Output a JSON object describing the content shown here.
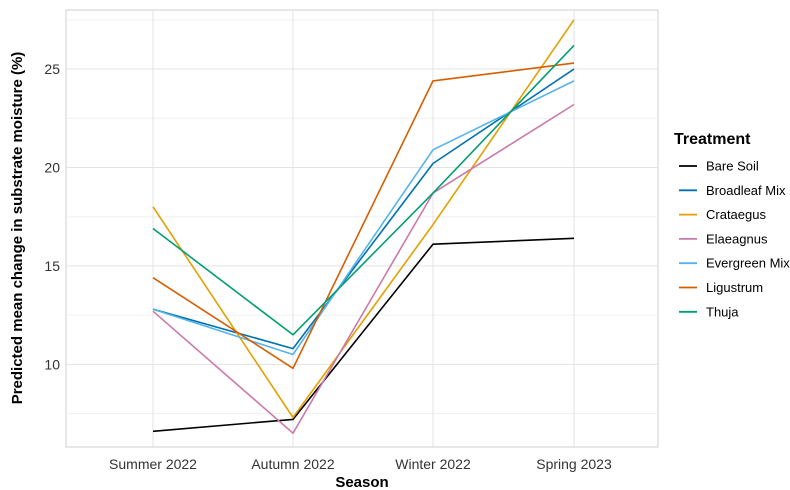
{
  "chart_data": {
    "type": "line",
    "title": "",
    "xlabel": "Season",
    "ylabel": "Predicted mean change in substrate moisture (%)",
    "categories": [
      "Summer 2022",
      "Autumn 2022",
      "Winter 2022",
      "Spring 2023"
    ],
    "ylim": [
      5.8,
      28.0
    ],
    "yticks": [
      10,
      15,
      20,
      25
    ],
    "grid": true,
    "legend": {
      "title": "Treatment",
      "placement": "right"
    },
    "series": [
      {
        "name": "Bare Soil",
        "color": "#000000",
        "values": [
          6.6,
          7.2,
          16.1,
          16.4
        ]
      },
      {
        "name": "Broadleaf Mix",
        "color": "#0072B2",
        "values": [
          12.8,
          10.8,
          20.2,
          25.0
        ]
      },
      {
        "name": "Crataegus",
        "color": "#E69F00",
        "values": [
          18.0,
          7.3,
          17.1,
          27.5
        ]
      },
      {
        "name": "Elaeagnus",
        "color": "#CC79A7",
        "values": [
          12.7,
          6.5,
          18.7,
          23.2
        ]
      },
      {
        "name": "Evergreen Mix",
        "color": "#56B4E9",
        "values": [
          12.8,
          10.5,
          20.9,
          24.4
        ]
      },
      {
        "name": "Ligustrum",
        "color": "#D55E00",
        "values": [
          14.4,
          9.8,
          24.4,
          25.3
        ]
      },
      {
        "name": "Thuja",
        "color": "#009E73",
        "values": [
          16.9,
          11.5,
          18.7,
          26.2
        ]
      }
    ]
  }
}
